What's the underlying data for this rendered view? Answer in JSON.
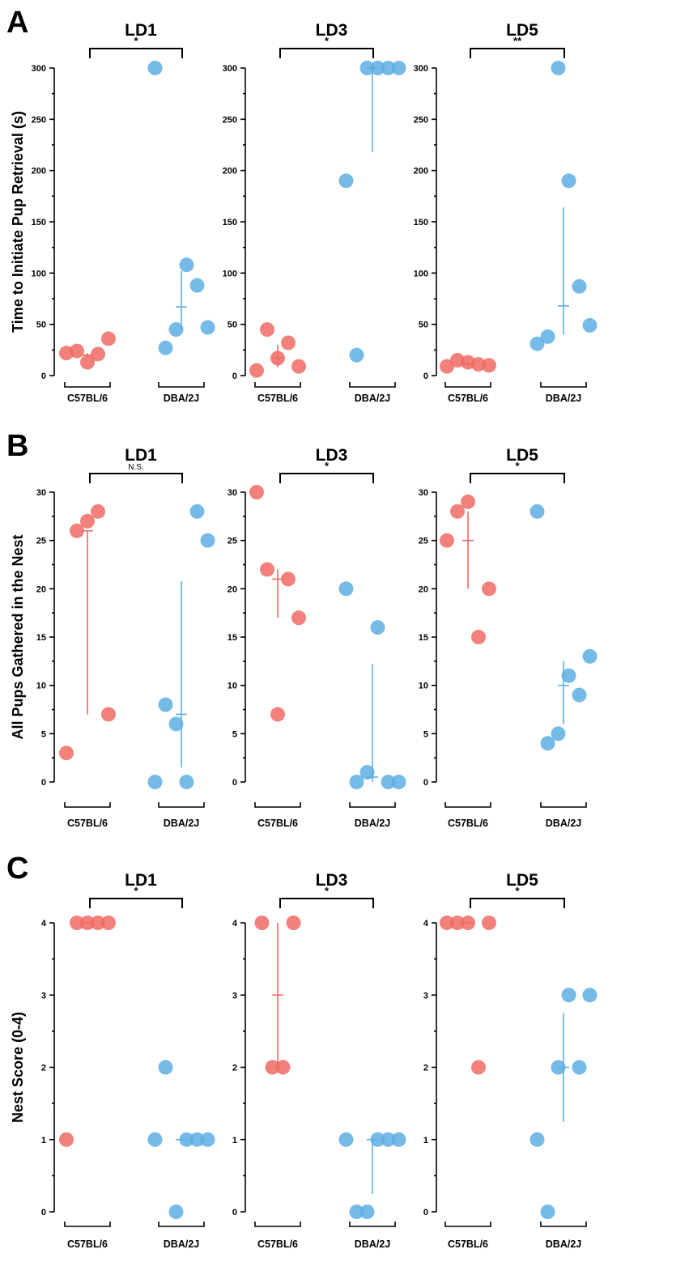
{
  "colors": {
    "c57": "#ee6b63",
    "dba": "#5eaee3"
  },
  "chart_data": [
    {
      "panel": "A",
      "type": "scatter",
      "ylabel": "Time to Initiate Pup Retrieval (s)",
      "ylim": [
        0,
        300
      ],
      "yticks": [
        0,
        50,
        100,
        150,
        200,
        250,
        300
      ],
      "categories": [
        "C57BL/6",
        "DBA/2J"
      ],
      "subplots": [
        {
          "title": "LD1",
          "significance": "*",
          "series": [
            {
              "name": "C57BL/6",
              "values": [
                22,
                24,
                13,
                21,
                36
              ],
              "median": 20,
              "range": [
                18,
                22
              ]
            },
            {
              "name": "DBA/2J",
              "values": [
                300,
                27,
                45,
                108,
                88,
                47
              ],
              "median": 67,
              "range": [
                45,
                102
              ]
            }
          ]
        },
        {
          "title": "LD3",
          "significance": "*",
          "series": [
            {
              "name": "C57BL/6",
              "values": [
                5,
                45,
                17,
                32,
                9
              ],
              "median": 17,
              "range": [
                8,
                30
              ]
            },
            {
              "name": "DBA/2J",
              "values": [
                190,
                20,
                300,
                300,
                300,
                300
              ],
              "median": 300,
              "range": [
                218,
                300
              ]
            }
          ]
        },
        {
          "title": "LD5",
          "significance": "**",
          "series": [
            {
              "name": "C57BL/6",
              "values": [
                9,
                15,
                13,
                11,
                10
              ],
              "median": 11,
              "range": [
                9,
                14
              ]
            },
            {
              "name": "DBA/2J",
              "values": [
                31,
                38,
                300,
                190,
                87,
                49
              ],
              "median": 68,
              "range": [
                40,
                164
              ]
            }
          ]
        }
      ]
    },
    {
      "panel": "B",
      "type": "scatter",
      "ylabel": "All Pups Gathered in the Nest",
      "ylim": [
        0,
        30
      ],
      "yticks": [
        0,
        5,
        10,
        15,
        20,
        25,
        30
      ],
      "categories": [
        "C57BL/6",
        "DBA/2J"
      ],
      "subplots": [
        {
          "title": "LD1",
          "significance": "N.S.",
          "series": [
            {
              "name": "C57BL/6",
              "values": [
                3,
                26,
                27,
                28,
                7
              ],
              "median": 26,
              "range": [
                7,
                26
              ]
            },
            {
              "name": "DBA/2J",
              "values": [
                0,
                8,
                6,
                0,
                28,
                25
              ],
              "median": 7,
              "range": [
                1.5,
                20.8
              ]
            }
          ]
        },
        {
          "title": "LD3",
          "significance": "*",
          "series": [
            {
              "name": "C57BL/6",
              "values": [
                30,
                22,
                7,
                21,
                17
              ],
              "median": 21,
              "range": [
                17,
                22
              ]
            },
            {
              "name": "DBA/2J",
              "values": [
                20,
                0,
                1,
                16,
                0,
                0
              ],
              "median": 0.5,
              "range": [
                0,
                12.2
              ]
            }
          ]
        },
        {
          "title": "LD5",
          "significance": "*",
          "series": [
            {
              "name": "C57BL/6",
              "values": [
                25,
                28,
                29,
                15,
                20
              ],
              "median": 25,
              "range": [
                20,
                28
              ]
            },
            {
              "name": "DBA/2J",
              "values": [
                28,
                4,
                5,
                11,
                9,
                13
              ],
              "median": 10,
              "range": [
                6,
                12.5
              ]
            }
          ]
        }
      ]
    },
    {
      "panel": "C",
      "type": "scatter",
      "ylabel": "Nest Score (0-4)",
      "ylim": [
        0,
        4
      ],
      "yticks": [
        0,
        1,
        2,
        3,
        4
      ],
      "categories": [
        "C57BL/6",
        "DBA/2J"
      ],
      "subplots": [
        {
          "title": "LD1",
          "significance": "*",
          "series": [
            {
              "name": "C57BL/6",
              "values": [
                1,
                4,
                4,
                4,
                4
              ],
              "median": 4,
              "range": [
                4,
                4
              ]
            },
            {
              "name": "DBA/2J",
              "values": [
                1,
                2,
                0,
                1,
                1,
                1
              ],
              "median": 1,
              "range": [
                1,
                1
              ]
            }
          ]
        },
        {
          "title": "LD3",
          "significance": "*",
          "series": [
            {
              "name": "C57BL/6",
              "values": [
                4,
                2,
                2,
                4
              ],
              "median": 3,
              "range": [
                2,
                4
              ]
            },
            {
              "name": "DBA/2J",
              "values": [
                1,
                0,
                0,
                1,
                1,
                1
              ],
              "median": 1,
              "range": [
                0.25,
                1
              ]
            }
          ]
        },
        {
          "title": "LD5",
          "significance": "*",
          "series": [
            {
              "name": "C57BL/6",
              "values": [
                4,
                4,
                4,
                2,
                4
              ],
              "median": 4,
              "range": [
                4,
                4
              ]
            },
            {
              "name": "DBA/2J",
              "values": [
                1,
                0,
                2,
                3,
                2,
                3
              ],
              "median": 2,
              "range": [
                1.25,
                2.75
              ]
            }
          ]
        }
      ]
    }
  ]
}
